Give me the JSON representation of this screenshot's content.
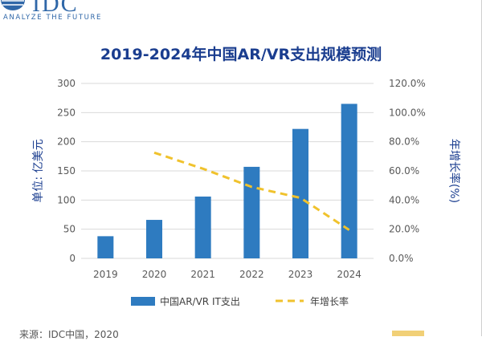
{
  "logo": {
    "text": "IDC",
    "tagline": "ANALYZE THE FUTURE"
  },
  "title": "2019-2024年中国AR/VR支出规模预测",
  "chart_data": {
    "type": "bar+line",
    "categories": [
      "2019",
      "2020",
      "2021",
      "2022",
      "2023",
      "2024"
    ],
    "bar_series": {
      "name": "中国AR/VR IT支出",
      "values": [
        38,
        66,
        106,
        157,
        222,
        265
      ]
    },
    "line_series": {
      "name": "年增长率",
      "values": [
        null,
        72.5,
        61.5,
        49.0,
        41.5,
        19.5
      ]
    },
    "ylabel_left": "单位: 亿美元",
    "ylabel_right": "年增长率(%)",
    "ylim_left": [
      0,
      300
    ],
    "yticks_left": [
      "0",
      "50",
      "100",
      "150",
      "200",
      "250",
      "300"
    ],
    "ylim_right": [
      0,
      120
    ],
    "yticks_right": [
      "0.0%",
      "20.0%",
      "40.0%",
      "60.0%",
      "80.0%",
      "100.0%",
      "120.0%"
    ],
    "bar_color": "#2e7bc0",
    "line_color": "#f0c22d"
  },
  "source": "来源：IDC中国，2020"
}
